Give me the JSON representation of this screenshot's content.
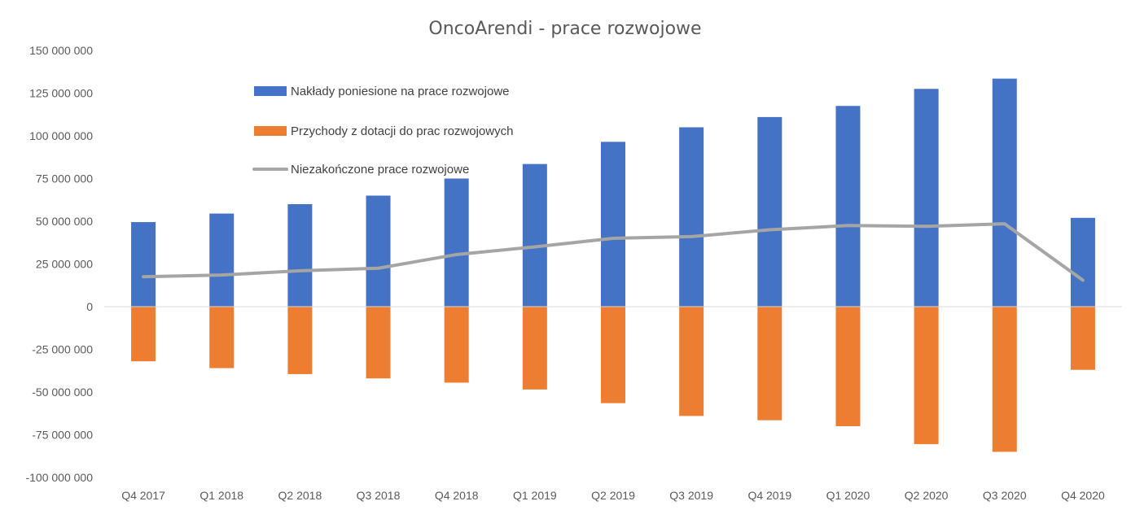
{
  "chart_data": {
    "type": "bar",
    "title": "OncoArendi - prace rozwojowe",
    "categories": [
      "Q4 2017",
      "Q1 2018",
      "Q2 2018",
      "Q3 2018",
      "Q4 2018",
      "Q1 2019",
      "Q2 2019",
      "Q3 2019",
      "Q4 2019",
      "Q1 2020",
      "Q2 2020",
      "Q3 2020",
      "Q4 2020"
    ],
    "y_tick_labels": [
      "150 000 000",
      "125 000 000",
      "100 000 000",
      "75 000 000",
      "50 000 000",
      "25 000 000",
      "0",
      "-25 000 000",
      "-50 000 000",
      "-75 000 000",
      "-100 000 000"
    ],
    "ylim": [
      -100000000,
      150000000
    ],
    "y_step": 25000000,
    "grid": false,
    "legend_position": "top-left inside plot",
    "series": [
      {
        "name": "Nakłady poniesione na prace rozwojowe",
        "type": "bar",
        "color": "#4472C4",
        "values": [
          49500000,
          54500000,
          60000000,
          65000000,
          75000000,
          83500000,
          96500000,
          105000000,
          111000000,
          117500000,
          127500000,
          133500000,
          52000000
        ]
      },
      {
        "name": "Przychody z dotacji do prac rozwojowych",
        "type": "bar",
        "color": "#ED7D31",
        "values": [
          -32000000,
          -36000000,
          -39500000,
          -42000000,
          -44500000,
          -48500000,
          -56500000,
          -64000000,
          -66500000,
          -70000000,
          -80500000,
          -85000000,
          -37000000
        ]
      },
      {
        "name": "Niezakończone prace rozwojowe",
        "type": "line",
        "color": "#A5A5A5",
        "values": [
          17500000,
          18500000,
          21000000,
          22500000,
          30500000,
          35000000,
          40000000,
          41000000,
          45000000,
          47500000,
          47000000,
          48500000,
          15500000
        ]
      }
    ]
  }
}
